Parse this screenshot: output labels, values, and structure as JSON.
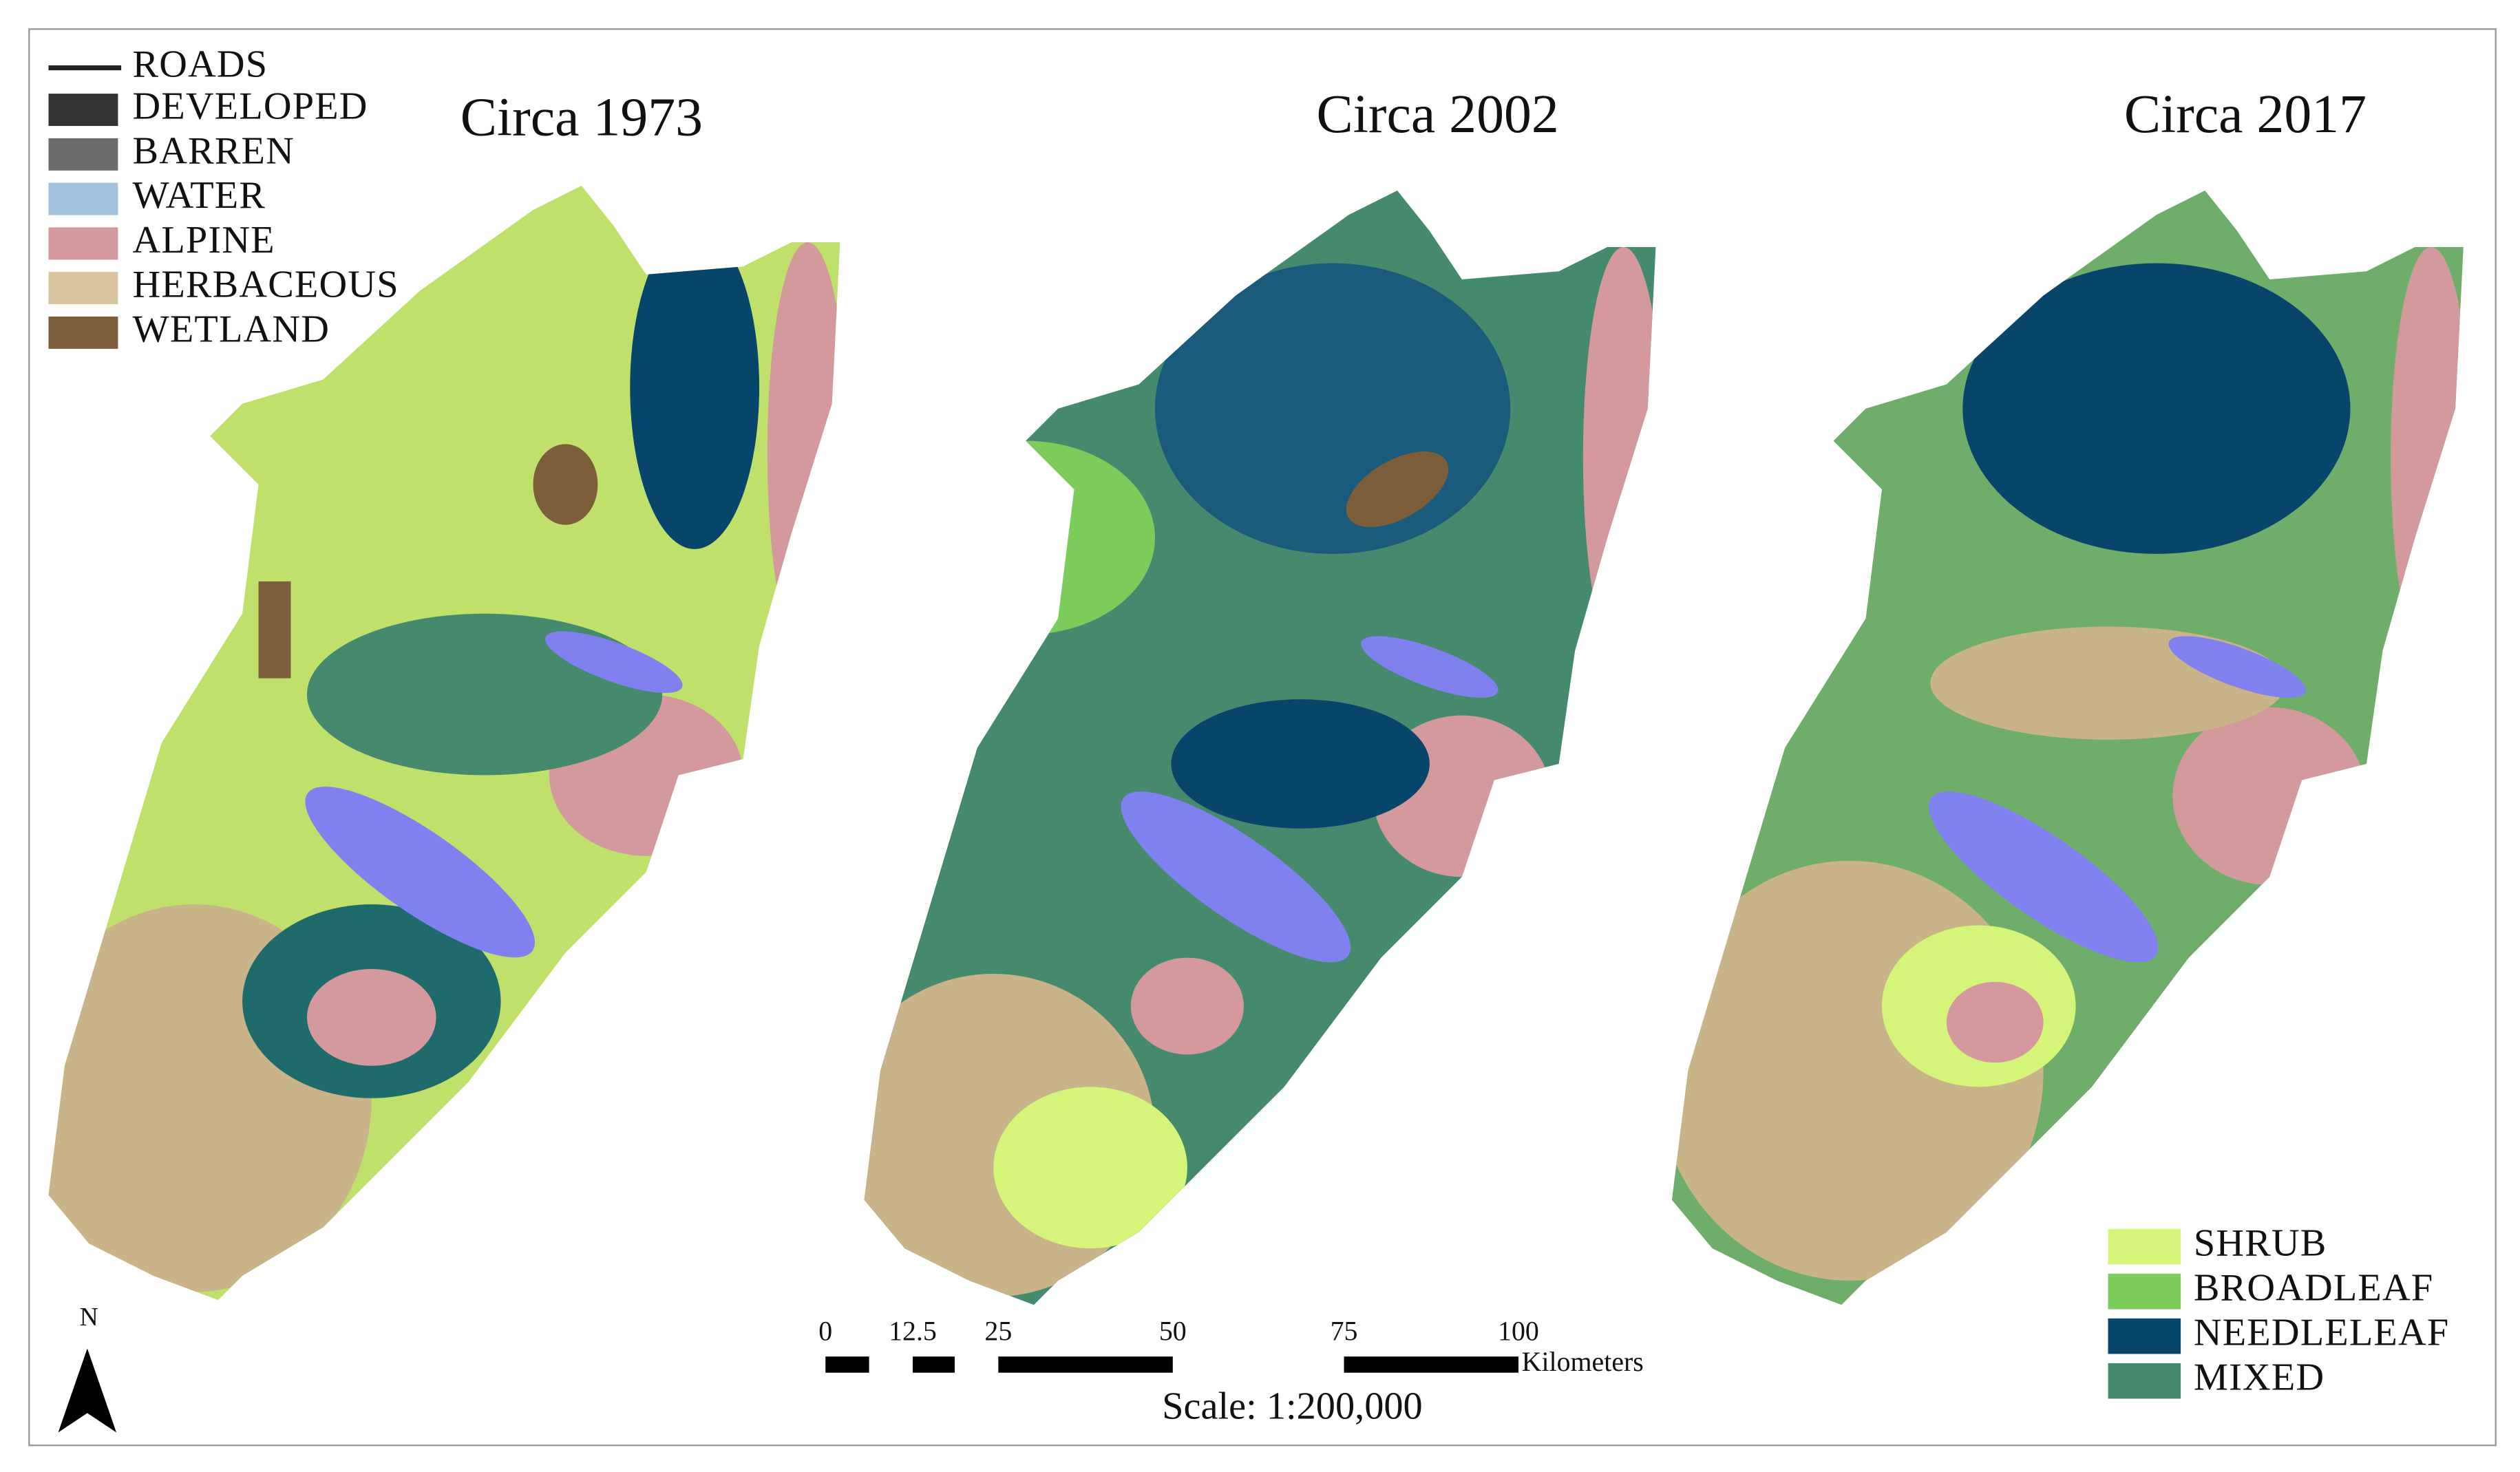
{
  "legend": {
    "roads": {
      "label": "ROADS",
      "color": "#222222"
    },
    "items": [
      {
        "label": "DEVELOPED",
        "color": "#333333"
      },
      {
        "label": "BARREN",
        "color": "#6b6b6b"
      },
      {
        "label": "WATER",
        "color": "#a3c0dc"
      },
      {
        "label": "ALPINE",
        "color": "#d4999c"
      },
      {
        "label": "HERBACEOUS",
        "color": "#d9c4a0"
      },
      {
        "label": "WETLAND",
        "color": "#7d5e3a"
      }
    ]
  },
  "panels": [
    {
      "title": "Circa 1973"
    },
    {
      "title": "Circa 2002"
    },
    {
      "title": "Circa 2017"
    }
  ],
  "vegetation_legend": [
    {
      "label": "SHRUB",
      "color": "#d4f57a"
    },
    {
      "label": "BROADLEAF",
      "color": "#7ccc5c"
    },
    {
      "label": "NEEDLELEAF",
      "color": "#08456a"
    },
    {
      "label": "MIXED",
      "color": "#468a6e"
    }
  ],
  "scale_bar": {
    "ticks": [
      "0",
      "12.5",
      "25",
      "50",
      "75",
      "100"
    ],
    "unit": "Kilometers",
    "text": "Scale: 1:200,000"
  },
  "north_arrow": {
    "label": "N"
  }
}
